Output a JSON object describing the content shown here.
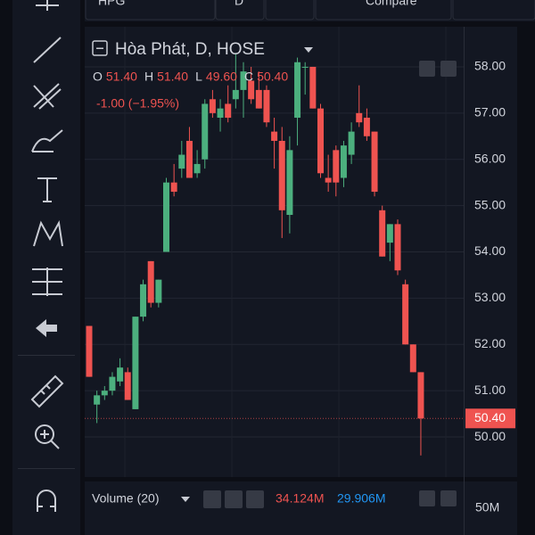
{
  "toolbar": {
    "symbol": "HPG",
    "interval": "D",
    "compare": "Compare"
  },
  "chart_data": {
    "type": "candlestick",
    "legend": {
      "name": "Hòa Phát, D, HOSE",
      "ohlc": [
        {
          "label": "O",
          "value": "51.40"
        },
        {
          "label": "H",
          "value": "51.40"
        },
        {
          "label": "L",
          "value": "49.60"
        },
        {
          "label": "C",
          "value": "50.40"
        }
      ],
      "change": "-1.00 (−1.95%)"
    },
    "open": [
      52.4,
      50.7,
      50.9,
      51.0,
      51.2,
      51.4,
      50.6,
      52.6,
      53.8,
      52.9,
      54.0,
      55.5,
      55.8,
      56.4,
      55.7,
      56.0,
      57.3,
      56.9,
      57.2,
      57.3,
      57.5,
      57.7,
      57.5,
      57.5,
      56.6,
      56.4,
      54.8,
      56.9,
      58.0,
      58.0,
      57.1,
      55.6,
      56.2,
      55.6,
      56.1,
      57.0,
      56.9,
      56.6,
      54.9,
      54.2,
      54.6,
      53.3,
      52.0,
      51.4
    ],
    "high": [
      52.4,
      51.0,
      51.1,
      51.4,
      51.7,
      51.5,
      52.6,
      53.4,
      53.8,
      53.4,
      55.6,
      55.9,
      56.4,
      56.7,
      56.2,
      57.3,
      57.5,
      57.3,
      57.6,
      58.3,
      58.1,
      58.0,
      57.9,
      57.6,
      56.9,
      56.7,
      56.5,
      58.2,
      58.1,
      58.0,
      57.2,
      56.1,
      56.3,
      56.4,
      56.8,
      57.6,
      57.1,
      56.6,
      55.0,
      54.6,
      54.7,
      53.4,
      52.0,
      51.4
    ],
    "low": [
      51.3,
      50.3,
      50.8,
      50.9,
      51.1,
      50.8,
      50.6,
      52.5,
      52.8,
      52.8,
      54.0,
      55.2,
      55.6,
      55.6,
      55.6,
      55.8,
      56.9,
      56.6,
      56.8,
      57.1,
      56.9,
      57.2,
      57.1,
      56.7,
      55.8,
      54.3,
      54.4,
      56.3,
      57.4,
      57.1,
      55.6,
      55.3,
      55.2,
      55.4,
      55.9,
      56.7,
      56.4,
      55.2,
      53.9,
      53.8,
      53.5,
      52.0,
      51.4,
      49.6
    ],
    "close": [
      51.3,
      50.9,
      51.0,
      51.3,
      51.5,
      50.8,
      52.6,
      53.3,
      52.9,
      53.4,
      55.5,
      55.3,
      56.1,
      55.6,
      55.9,
      57.2,
      57.0,
      57.1,
      56.9,
      57.5,
      57.9,
      57.3,
      57.1,
      56.8,
      56.4,
      54.9,
      56.2,
      58.1,
      58.0,
      57.1,
      55.7,
      55.5,
      55.5,
      56.3,
      56.6,
      56.8,
      56.5,
      55.3,
      53.9,
      54.6,
      53.6,
      52.0,
      51.4,
      50.4
    ],
    "up_color": "#4caf7e",
    "down_color": "#ef5350",
    "ylim": [
      49.23,
      58.77
    ],
    "yticks": [
      {
        "value": 50,
        "label": "50.00"
      },
      {
        "value": 51,
        "label": "51.00"
      },
      {
        "value": 52,
        "label": "52.00"
      },
      {
        "value": 53,
        "label": "53.00"
      },
      {
        "value": 54,
        "label": "54.00"
      },
      {
        "value": 55,
        "label": "55.00"
      },
      {
        "value": 56,
        "label": "56.00"
      },
      {
        "value": 57,
        "label": "57.00"
      },
      {
        "value": 58,
        "label": "58.00"
      }
    ],
    "grid": true,
    "volume": {
      "title": "Volume (20)",
      "value": "34.124M",
      "average": "29.906M",
      "tick": "50M"
    }
  }
}
